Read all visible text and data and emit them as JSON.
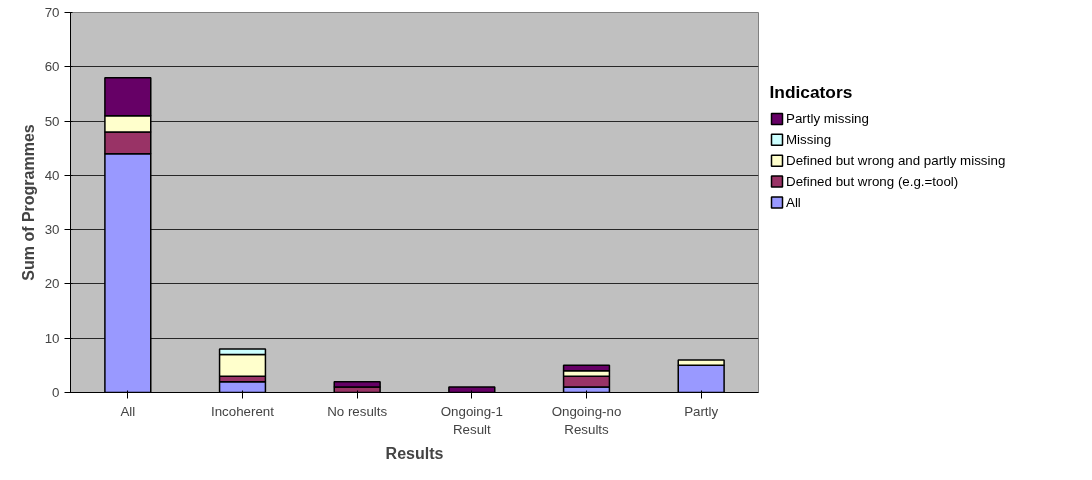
{
  "chart_data": {
    "type": "bar",
    "stacked": true,
    "xlabel": "Results",
    "ylabel": "Sum of Programmes",
    "legend_title": "Indicators",
    "categories": [
      "All",
      "Incoherent",
      "No results",
      "Ongoing-1 Result",
      "Ongoing-no Results",
      "Partly"
    ],
    "series": [
      {
        "name": "All",
        "color": "#9999ff",
        "values": [
          44,
          2,
          0,
          0,
          1,
          5
        ]
      },
      {
        "name": "Defined but wrong (e.g.=tool)",
        "color": "#993366",
        "values": [
          4,
          1,
          1,
          0,
          2,
          0
        ]
      },
      {
        "name": "Defined but wrong and partly missing",
        "color": "#ffffcc",
        "values": [
          3,
          4,
          0,
          0,
          1,
          1
        ]
      },
      {
        "name": "Missing",
        "color": "#ccffff",
        "values": [
          0,
          1,
          0,
          0,
          0,
          0
        ]
      },
      {
        "name": "Partly missing",
        "color": "#660066",
        "values": [
          7,
          0,
          1,
          1,
          1,
          0
        ]
      }
    ],
    "ylim": [
      0,
      70
    ],
    "yticks": [
      0,
      10,
      20,
      30,
      40,
      50,
      60,
      70
    ],
    "grid": "y",
    "legend": "right"
  }
}
